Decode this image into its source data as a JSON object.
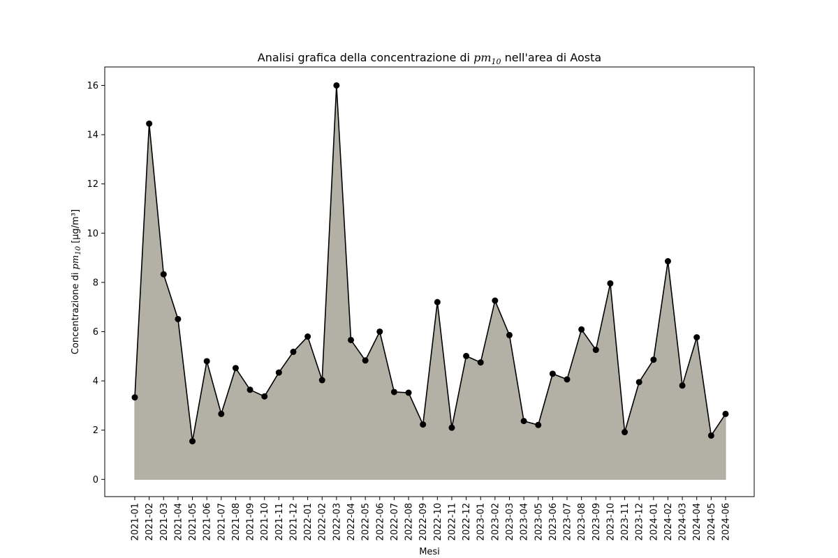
{
  "chart_data": {
    "type": "area",
    "title_prefix": "Analisi grafica della concentrazione di ",
    "title_math": "pm",
    "title_math_sub": "10",
    "title_suffix": " nell'area di Aosta",
    "xlabel": "Mesi",
    "ylabel_prefix": "Concentrazione di ",
    "ylabel_math": "pm",
    "ylabel_math_sub": "10",
    "ylabel_suffix": " [µg/m³]",
    "ylim": [
      -0.7,
      16.75
    ],
    "yticks": [
      0,
      2,
      4,
      6,
      8,
      10,
      12,
      14,
      16
    ],
    "fill_color": "#b3b1a6",
    "line_color": "#000000",
    "categories": [
      "2021-01",
      "2021-02",
      "2021-03",
      "2021-04",
      "2021-05",
      "2021-06",
      "2021-07",
      "2021-08",
      "2021-09",
      "2021-10",
      "2021-11",
      "2021-12",
      "2022-01",
      "2022-02",
      "2022-03",
      "2022-04",
      "2022-05",
      "2022-06",
      "2022-07",
      "2022-08",
      "2022-09",
      "2022-10",
      "2022-11",
      "2022-12",
      "2023-01",
      "2023-02",
      "2023-03",
      "2023-04",
      "2023-05",
      "2023-06",
      "2023-07",
      "2023-08",
      "2023-09",
      "2023-10",
      "2023-11",
      "2023-12",
      "2024-01",
      "2024-02",
      "2024-03",
      "2024-04",
      "2024-05",
      "2024-06"
    ],
    "values": [
      3.33,
      14.45,
      8.33,
      6.51,
      1.55,
      4.8,
      2.66,
      4.52,
      3.64,
      3.37,
      4.34,
      5.18,
      5.8,
      4.03,
      16.0,
      5.66,
      4.83,
      6.0,
      3.55,
      3.52,
      2.23,
      7.2,
      2.1,
      5.01,
      4.75,
      7.26,
      5.86,
      2.37,
      2.21,
      4.29,
      4.06,
      6.09,
      5.26,
      7.96,
      1.92,
      3.95,
      4.86,
      8.86,
      3.81,
      5.77,
      1.78,
      2.66
    ]
  }
}
